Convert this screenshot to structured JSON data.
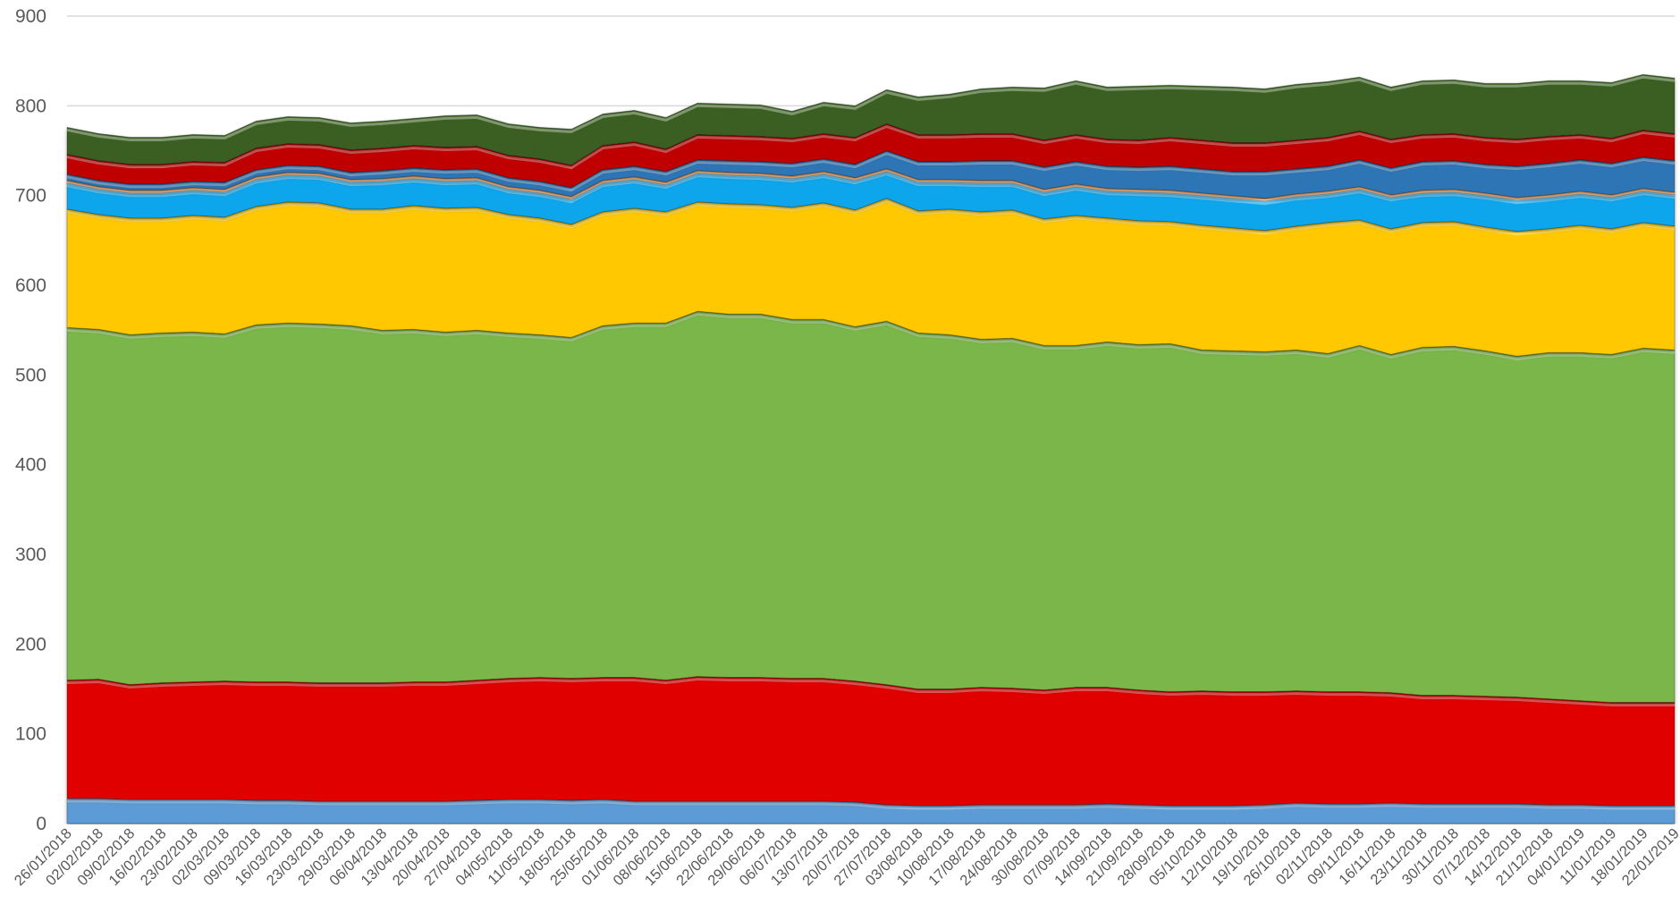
{
  "chart_data": {
    "type": "area",
    "stacked": true,
    "title": "",
    "xlabel": "",
    "ylabel": "",
    "ylim": [
      0,
      900
    ],
    "yticks": [
      0,
      100,
      200,
      300,
      400,
      500,
      600,
      700,
      800,
      900
    ],
    "grid": "horizontal",
    "legend": "none",
    "x": [
      "26/01/2018",
      "02/02/2018",
      "09/02/2018",
      "16/02/2018",
      "23/02/2018",
      "02/03/2018",
      "09/03/2018",
      "16/03/2018",
      "23/03/2018",
      "29/03/2018",
      "06/04/2018",
      "13/04/2018",
      "20/04/2018",
      "27/04/2018",
      "04/05/2018",
      "11/05/2018",
      "18/05/2018",
      "25/05/2018",
      "01/06/2018",
      "08/06/2018",
      "15/06/2018",
      "22/06/2018",
      "29/06/2018",
      "06/07/2018",
      "13/07/2018",
      "20/07/2018",
      "27/07/2018",
      "03/08/2018",
      "10/08/2018",
      "17/08/2018",
      "24/08/2018",
      "30/08/2018",
      "07/09/2018",
      "14/09/2018",
      "21/09/2018",
      "28/09/2018",
      "05/10/2018",
      "12/10/2018",
      "19/10/2018",
      "26/10/2018",
      "02/11/2018",
      "09/11/2018",
      "16/11/2018",
      "23/11/2018",
      "30/11/2018",
      "07/12/2018",
      "14/12/2018",
      "21/12/2018",
      "04/01/2019",
      "11/01/2019",
      "18/01/2019",
      "22/01/2019"
    ],
    "series": [
      {
        "color": "#5b9bd5",
        "values": [
          28,
          28,
          27,
          27,
          27,
          27,
          26,
          26,
          25,
          25,
          25,
          25,
          25,
          26,
          27,
          27,
          26,
          27,
          25,
          25,
          25,
          25,
          25,
          25,
          25,
          24,
          21,
          20,
          20,
          21,
          21,
          21,
          21,
          22,
          21,
          20,
          20,
          20,
          21,
          23,
          22,
          22,
          23,
          22,
          22,
          22,
          22,
          21,
          21,
          20,
          20,
          20
        ]
      },
      {
        "color": "#e00000",
        "values": [
          132,
          133,
          128,
          130,
          131,
          132,
          132,
          132,
          132,
          132,
          132,
          133,
          133,
          134,
          135,
          136,
          136,
          136,
          138,
          135,
          139,
          138,
          138,
          137,
          137,
          135,
          134,
          130,
          130,
          131,
          130,
          128,
          131,
          130,
          128,
          127,
          128,
          127,
          126,
          125,
          125,
          125,
          123,
          121,
          121,
          120,
          119,
          118,
          116,
          115,
          115,
          115
        ]
      },
      {
        "color": "#7ab648",
        "values": [
          393,
          390,
          390,
          390,
          390,
          387,
          398,
          400,
          400,
          398,
          393,
          393,
          390,
          390,
          385,
          382,
          380,
          392,
          395,
          398,
          407,
          405,
          405,
          400,
          400,
          395,
          405,
          397,
          395,
          388,
          390,
          384,
          381,
          385,
          385,
          388,
          380,
          380,
          379,
          380,
          377,
          386,
          377,
          388,
          389,
          385,
          380,
          386,
          388,
          388,
          395,
          393
        ]
      },
      {
        "color": "#ffc800",
        "values": [
          132,
          128,
          130,
          128,
          130,
          130,
          132,
          135,
          135,
          130,
          135,
          138,
          138,
          137,
          132,
          130,
          126,
          127,
          128,
          124,
          122,
          123,
          122,
          125,
          130,
          130,
          137,
          136,
          140,
          142,
          143,
          141,
          145,
          138,
          138,
          136,
          139,
          137,
          135,
          138,
          146,
          140,
          140,
          139,
          139,
          138,
          139,
          138,
          142,
          140,
          140,
          138
        ]
      },
      {
        "color": "#0ba5ec",
        "values": [
          29,
          28,
          28,
          28,
          28,
          28,
          30,
          30,
          30,
          30,
          31,
          30,
          30,
          30,
          28,
          28,
          28,
          32,
          32,
          30,
          32,
          32,
          32,
          32,
          32,
          33,
          30,
          32,
          30,
          32,
          30,
          30,
          32,
          30,
          32,
          32,
          33,
          33,
          33,
          33,
          32,
          34,
          35,
          33,
          33,
          35,
          35,
          35,
          35,
          35,
          35,
          35
        ]
      },
      {
        "color": "#f4a460",
        "values": [
          3,
          3,
          3,
          3,
          3,
          3,
          3,
          3,
          3,
          3,
          3,
          3,
          3,
          3,
          3,
          3,
          3,
          3,
          3,
          3,
          3,
          3,
          3,
          3,
          3,
          3,
          3,
          3,
          3,
          3,
          3,
          3,
          3,
          3,
          3,
          3,
          3,
          3,
          3,
          3,
          3,
          3,
          3,
          3,
          3,
          3,
          3,
          3,
          3,
          3,
          3,
          3
        ]
      },
      {
        "color": "#2e75b6",
        "values": [
          7,
          7,
          7,
          7,
          7,
          8,
          8,
          8,
          8,
          8,
          9,
          9,
          10,
          10,
          10,
          10,
          10,
          12,
          12,
          12,
          12,
          13,
          13,
          14,
          14,
          15,
          20,
          20,
          20,
          22,
          22,
          25,
          25,
          25,
          25,
          27,
          27,
          27,
          30,
          28,
          28,
          30,
          30,
          32,
          32,
          32,
          35,
          35,
          35,
          35,
          35,
          35
        ]
      },
      {
        "color": "#c00000",
        "values": [
          22,
          22,
          22,
          22,
          22,
          22,
          24,
          24,
          24,
          25,
          25,
          25,
          25,
          25,
          25,
          25,
          25,
          27,
          27,
          25,
          28,
          28,
          28,
          28,
          28,
          30,
          30,
          30,
          30,
          30,
          30,
          30,
          30,
          30,
          30,
          32,
          32,
          32,
          32,
          32,
          32,
          32,
          32,
          30,
          30,
          30,
          30,
          30,
          28,
          28,
          30,
          30
        ]
      },
      {
        "color": "#3b5e24",
        "values": [
          30,
          30,
          30,
          30,
          30,
          30,
          30,
          30,
          30,
          30,
          30,
          30,
          35,
          35,
          35,
          35,
          40,
          35,
          35,
          35,
          35,
          35,
          35,
          30,
          35,
          35,
          38,
          42,
          45,
          50,
          52,
          58,
          60,
          58,
          60,
          58,
          60,
          62,
          60,
          62,
          62,
          60,
          58,
          60,
          60,
          60,
          62,
          62,
          60,
          62,
          62,
          62
        ]
      }
    ]
  }
}
